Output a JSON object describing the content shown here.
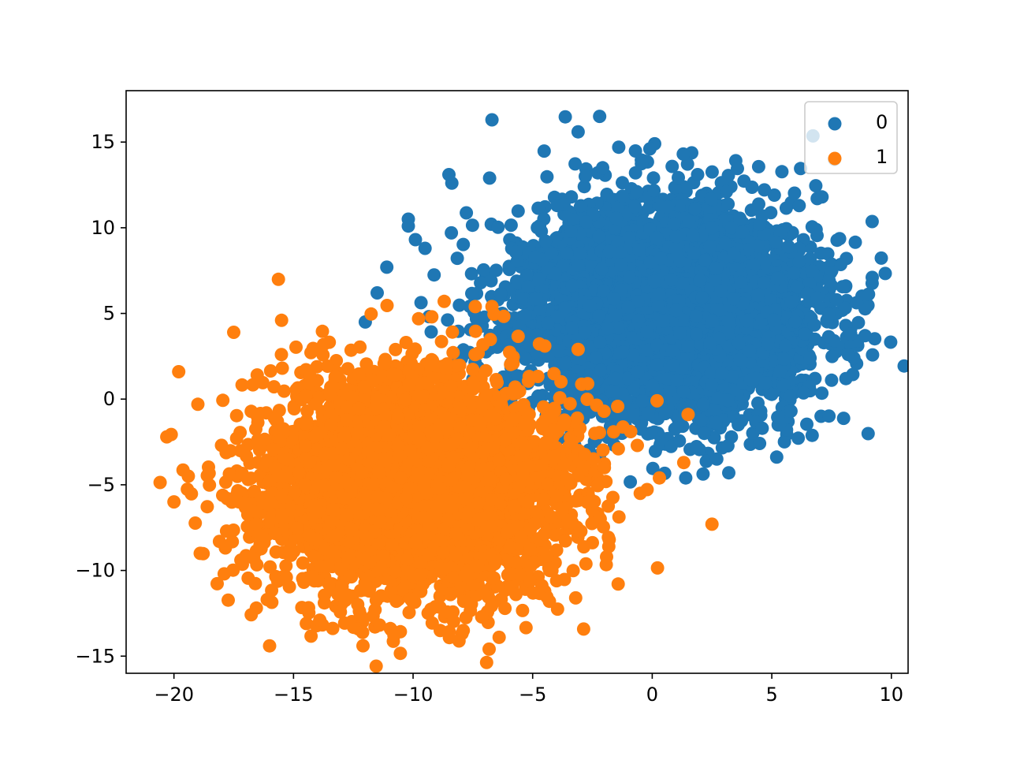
{
  "chart_data": {
    "type": "scatter",
    "title": "",
    "xlabel": "",
    "ylabel": "",
    "xlim": [
      -22,
      10.7
    ],
    "ylim": [
      -16,
      18
    ],
    "xticks": [
      -20,
      -15,
      -10,
      -5,
      0,
      5,
      10
    ],
    "yticks": [
      -15,
      -10,
      -5,
      0,
      5,
      10,
      15
    ],
    "xtick_labels": [
      "−20",
      "−15",
      "−10",
      "−5",
      "0",
      "5",
      "10"
    ],
    "ytick_labels": [
      "−15",
      "−10",
      "−5",
      "0",
      "5",
      "10",
      "15"
    ],
    "grid": false,
    "legend_position": "top-right",
    "series": [
      {
        "name": "0",
        "color": "#1f77b4",
        "n_points": 5000,
        "center": [
          0.5,
          5.0
        ],
        "std": [
          3.0,
          3.0
        ],
        "seed": 11,
        "outliers": [
          [
            -6.7,
            16.3
          ],
          [
            -2.2,
            16.5
          ],
          [
            -3.1,
            15.6
          ],
          [
            -1.4,
            14.7
          ],
          [
            -0.1,
            14.6
          ],
          [
            1.3,
            14.3
          ],
          [
            -8.5,
            13.1
          ],
          [
            -6.8,
            12.9
          ],
          [
            -2.8,
            13.0
          ],
          [
            -0.7,
            13.2
          ],
          [
            1.9,
            13.1
          ],
          [
            3.1,
            12.1
          ],
          [
            6.9,
            11.7
          ],
          [
            7.1,
            11.8
          ],
          [
            9.2,
            7.1
          ],
          [
            8.9,
            3.7
          ],
          [
            8.3,
            3.8
          ],
          [
            8.2,
            2.6
          ],
          [
            8.1,
            1.2
          ],
          [
            7.5,
            1.1
          ],
          [
            7.4,
            6.9
          ],
          [
            7.7,
            5.8
          ],
          [
            6.9,
            5.9
          ],
          [
            3.2,
            -4.3
          ],
          [
            2.7,
            -3.5
          ],
          [
            1.4,
            -4.6
          ],
          [
            -10.2,
            10.5
          ],
          [
            -10.2,
            10.1
          ],
          [
            -8.4,
            9.7
          ],
          [
            -9.5,
            8.8
          ],
          [
            -11.5,
            6.2
          ],
          [
            -11.1,
            7.7
          ],
          [
            -12.0,
            4.5
          ],
          [
            5.8,
            8.6
          ],
          [
            5.7,
            8.9
          ],
          [
            4.6,
            10.7
          ],
          [
            4.5,
            10.2
          ],
          [
            6.8,
            3.5
          ],
          [
            6.6,
            2.4
          ],
          [
            5.8,
            -0.7
          ],
          [
            4.6,
            -1.7
          ],
          [
            3.6,
            -1.5
          ]
        ]
      },
      {
        "name": "1",
        "color": "#ff7f0e",
        "n_points": 5000,
        "center": [
          -10.0,
          -5.0
        ],
        "std": [
          3.0,
          3.0
        ],
        "seed": 23,
        "outliers": [
          [
            -16.0,
            -14.4
          ],
          [
            -6.4,
            -13.9
          ],
          [
            -7.9,
            -13.5
          ],
          [
            -10.8,
            -13.8
          ],
          [
            -13.9,
            -12.9
          ],
          [
            -12.2,
            -12.6
          ],
          [
            -20.3,
            -2.2
          ],
          [
            -19.8,
            1.6
          ],
          [
            -19.0,
            -0.3
          ],
          [
            -20.0,
            -6.0
          ],
          [
            -19.4,
            -4.5
          ],
          [
            -18.9,
            -9.0
          ],
          [
            -17.9,
            -10.2
          ],
          [
            -17.5,
            3.9
          ],
          [
            -17.2,
            -9.4
          ],
          [
            -15.5,
            4.6
          ],
          [
            -16.1,
            -11.7
          ],
          [
            -17.8,
            -7.7
          ],
          [
            2.5,
            -7.3
          ],
          [
            1.5,
            -0.9
          ],
          [
            0.2,
            -0.1
          ],
          [
            -0.9,
            -1.9
          ],
          [
            -0.5,
            -5.5
          ],
          [
            -1.8,
            -8.2
          ],
          [
            -2.4,
            -2.0
          ],
          [
            -2.7,
            0.9
          ],
          [
            -3.1,
            2.9
          ],
          [
            -6.7,
            5.4
          ],
          [
            -7.4,
            5.4
          ],
          [
            -8.7,
            5.7
          ],
          [
            0.3,
            -4.6
          ],
          [
            -2.0,
            -4.0
          ],
          [
            -3.2,
            -11.6
          ],
          [
            -4.3,
            -11.8
          ],
          [
            -4.0,
            -10.6
          ],
          [
            -5.7,
            -11.4
          ]
        ]
      }
    ]
  }
}
